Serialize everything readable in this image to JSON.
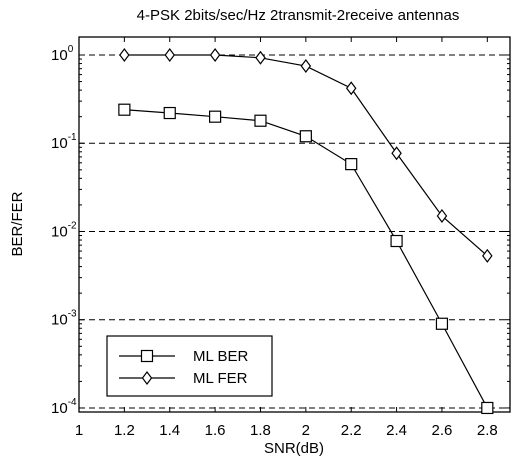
{
  "chart_data": {
    "type": "line",
    "title": "4-PSK 2bits/sec/Hz 2transmit-2receive antennas",
    "xlabel": "SNR(dB)",
    "ylabel": "BER/FER",
    "xlim": [
      1,
      2.9
    ],
    "ylim": [
      9e-05,
      1.6
    ],
    "yscale": "log",
    "xticks": [
      1,
      1.2,
      1.4,
      1.6,
      1.8,
      2,
      2.2,
      2.4,
      2.6,
      2.8
    ],
    "xtick_labels": [
      "1",
      "1.2",
      "1.4",
      "1.6",
      "1.8",
      "2",
      "2.2",
      "2.4",
      "2.6",
      "2.8"
    ],
    "yticks": [
      {
        "value": 1,
        "base": "10",
        "exp": "0"
      },
      {
        "value": 0.1,
        "base": "10",
        "exp": "-1"
      },
      {
        "value": 0.01,
        "base": "10",
        "exp": "-2"
      },
      {
        "value": 0.001,
        "base": "10",
        "exp": "-3"
      },
      {
        "value": 0.0001,
        "base": "10",
        "exp": "-4"
      }
    ],
    "grid": "horizontal dashed at decades",
    "legend_position": "bottom-left",
    "series": [
      {
        "name": "ML BER",
        "marker": "square",
        "x": [
          1.2,
          1.4,
          1.6,
          1.8,
          2.0,
          2.2,
          2.4,
          2.6,
          2.8
        ],
        "y": [
          0.24,
          0.22,
          0.2,
          0.18,
          0.12,
          0.058,
          0.0078,
          0.0009,
          0.0001
        ]
      },
      {
        "name": "ML FER",
        "marker": "diamond",
        "x": [
          1.2,
          1.4,
          1.6,
          1.8,
          2.0,
          2.2,
          2.4,
          2.6,
          2.8
        ],
        "y": [
          1.0,
          1.0,
          1.0,
          0.93,
          0.75,
          0.42,
          0.077,
          0.015,
          0.0053
        ]
      }
    ]
  }
}
